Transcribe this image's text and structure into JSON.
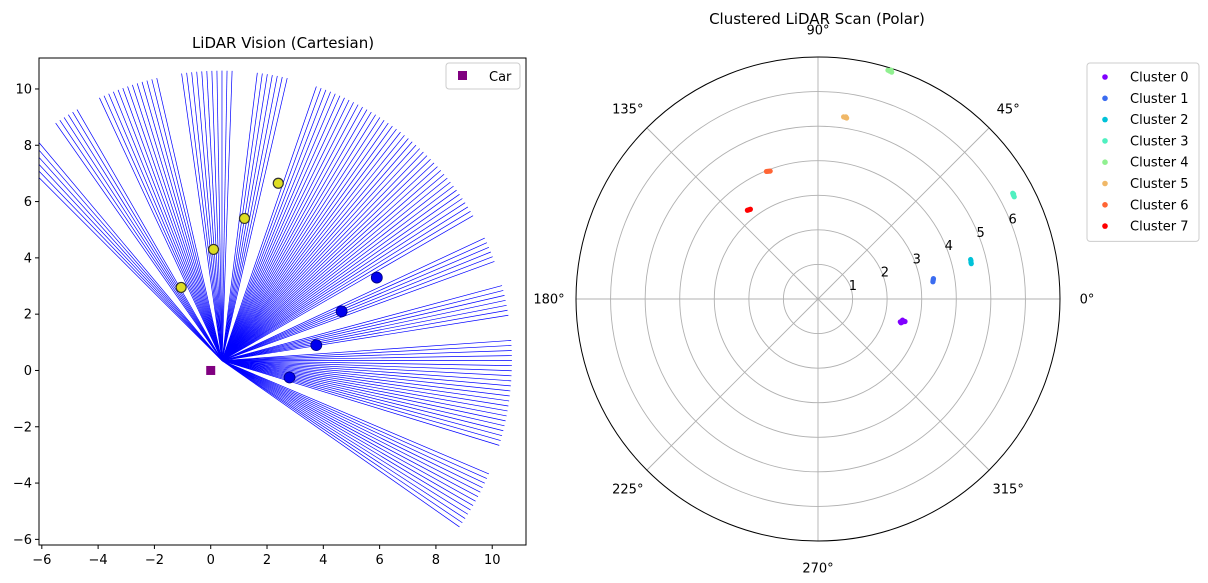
{
  "chart_data": [
    {
      "type": "scatter",
      "title": "LiDAR Vision (Cartesian)",
      "xlabel": "",
      "ylabel": "",
      "xlim": [
        -6.1,
        11.2
      ],
      "ylim": [
        -6.2,
        11.1
      ],
      "xticks": [
        -6,
        -4,
        -2,
        0,
        2,
        4,
        6,
        8,
        10
      ],
      "yticks": [
        -6,
        -4,
        -2,
        0,
        2,
        4,
        6,
        8,
        10
      ],
      "grid": false,
      "legend": {
        "placement": "top-right",
        "entries": [
          {
            "label": "Car",
            "color": "#800080",
            "marker": "square"
          }
        ]
      },
      "car": {
        "x": 0.0,
        "y": 0.0,
        "color": "#800080"
      },
      "rays": {
        "origin": [
          0.4,
          0.35
        ],
        "color": "#0000ff",
        "range": 10.3,
        "angle_start_deg": -35,
        "angle_end_deg": 135,
        "angle_step_deg": 1,
        "gaps": [
          {
            "from": -22,
            "to": -18
          },
          {
            "from": 5,
            "to": 8
          },
          {
            "from": 16,
            "to": 19
          },
          {
            "from": 26,
            "to": 29
          },
          {
            "from": 72,
            "to": 76
          },
          {
            "from": 84,
            "to": 87
          },
          {
            "from": 99,
            "to": 102
          },
          {
            "from": 116,
            "to": 119
          },
          {
            "from": 126,
            "to": 129
          }
        ]
      },
      "obstacles_blue": {
        "color": "#0000ee",
        "points": [
          [
            2.8,
            -0.25
          ],
          [
            3.75,
            0.9
          ],
          [
            4.65,
            2.1
          ],
          [
            5.9,
            3.3
          ]
        ]
      },
      "obstacles_yellow": {
        "color": "#dddd22",
        "points": [
          [
            -1.05,
            2.95
          ],
          [
            0.1,
            4.3
          ],
          [
            1.2,
            5.4
          ],
          [
            2.4,
            6.65
          ]
        ]
      }
    },
    {
      "type": "scatter",
      "polar": true,
      "title": "Clustered LiDAR Scan (Polar)",
      "r_max": 7,
      "rticks": [
        1,
        2,
        3,
        4,
        5,
        6
      ],
      "theta_labels": [
        "0°",
        "45°",
        "90°",
        "135°",
        "180°",
        "225°",
        "270°",
        "315°"
      ],
      "grid": true,
      "legend_placement": "outside-top-right",
      "series": [
        {
          "name": "Cluster 0",
          "color": "#8000ff",
          "points": [
            [
              -15,
              2.55
            ],
            [
              -14,
              2.52
            ],
            [
              -16,
              2.5
            ],
            [
              -14.5,
              2.6
            ],
            [
              -15.5,
              2.47
            ]
          ]
        },
        {
          "name": "Cluster 1",
          "color": "#3b6cf0",
          "points": [
            [
              9,
              3.37
            ],
            [
              9.5,
              3.38
            ],
            [
              10,
              3.39
            ],
            [
              8.5,
              3.36
            ]
          ]
        },
        {
          "name": "Cluster 2",
          "color": "#00c2d8",
          "points": [
            [
              13.5,
              4.55
            ],
            [
              14,
              4.56
            ],
            [
              14.5,
              4.56
            ],
            [
              13,
              4.55
            ]
          ]
        },
        {
          "name": "Cluster 3",
          "color": "#50f0c0",
          "points": [
            [
              28,
              6.4
            ],
            [
              28.5,
              6.41
            ],
            [
              27.5,
              6.4
            ],
            [
              28.2,
              6.42
            ]
          ]
        },
        {
          "name": "Cluster 4",
          "color": "#90f090",
          "points": [
            [
              72,
              6.9
            ],
            [
              72.5,
              6.91
            ],
            [
              73,
              6.92
            ],
            [
              72.3,
              6.95
            ]
          ]
        },
        {
          "name": "Cluster 5",
          "color": "#f0b868",
          "points": [
            [
              81,
              5.3
            ],
            [
              81.5,
              5.31
            ],
            [
              82,
              5.32
            ],
            [
              81.3,
              5.33
            ]
          ]
        },
        {
          "name": "Cluster 6",
          "color": "#ff6535",
          "points": [
            [
              110.5,
              3.95
            ],
            [
              111,
              3.96
            ],
            [
              111.5,
              3.97
            ],
            [
              112,
              3.98
            ]
          ]
        },
        {
          "name": "Cluster 7",
          "color": "#ff0000",
          "points": [
            [
              127,
              3.25
            ],
            [
              127.5,
              3.26
            ],
            [
              128,
              3.27
            ],
            [
              128.5,
              3.28
            ]
          ]
        }
      ]
    }
  ]
}
